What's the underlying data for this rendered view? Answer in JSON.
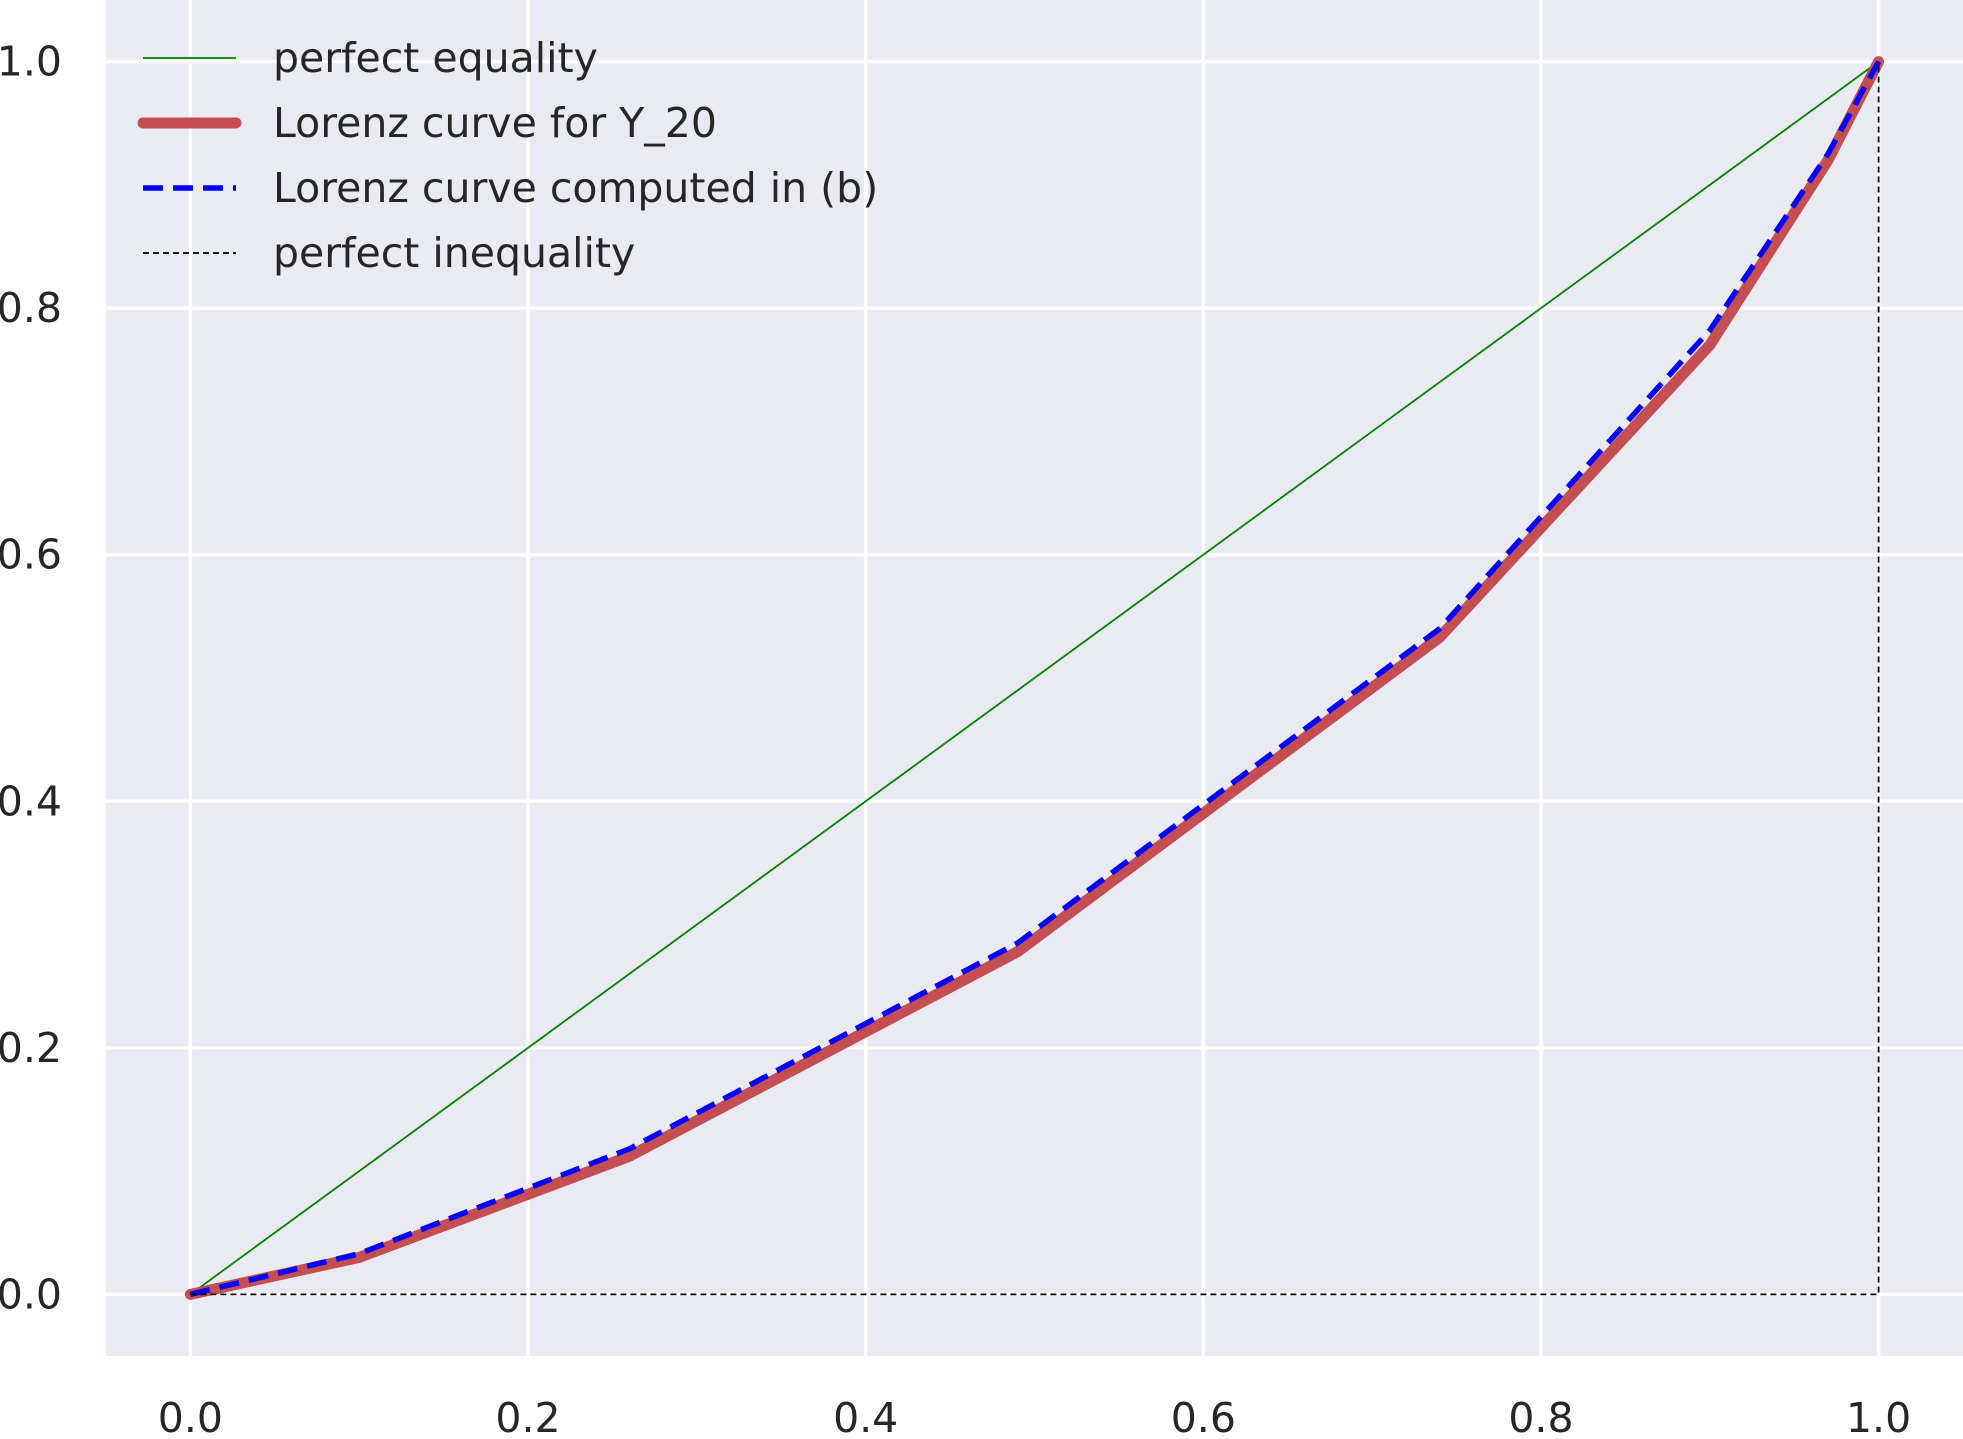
{
  "chart_data": {
    "type": "line",
    "xlim": [
      -0.05,
      1.05
    ],
    "ylim": [
      -0.05,
      1.05
    ],
    "x_ticks": [
      0.0,
      0.2,
      0.4,
      0.6,
      0.8,
      1.0
    ],
    "y_ticks": [
      0.0,
      0.2,
      0.4,
      0.6,
      0.8,
      1.0
    ],
    "x_tick_labels": [
      "0.0",
      "0.2",
      "0.4",
      "0.6",
      "0.8",
      "1.0"
    ],
    "y_tick_labels": [
      "0.0",
      "0.2",
      "0.4",
      "0.6",
      "0.8",
      "1.0"
    ],
    "grid": true,
    "background_color": "#eaeaf2",
    "legend_position": "upper-left",
    "series": [
      {
        "name": "perfect equality",
        "color": "#008000",
        "style": "solid-thin",
        "x": [
          0.0,
          1.0
        ],
        "y": [
          0.0,
          1.0
        ]
      },
      {
        "name": "Lorenz curve for Y_20",
        "color": "#c44e52",
        "style": "solid-thick",
        "x": [
          0.0,
          0.1,
          0.26,
          0.49,
          0.74,
          0.9,
          0.97,
          1.0
        ],
        "y": [
          0.0,
          0.03,
          0.112,
          0.278,
          0.533,
          0.77,
          0.92,
          1.0
        ]
      },
      {
        "name": "Lorenz curve computed in (b)",
        "color": "#0000ff",
        "style": "dashed",
        "x": [
          0.0,
          0.1,
          0.26,
          0.49,
          0.74,
          0.9,
          0.97,
          1.0
        ],
        "y": [
          0.0,
          0.033,
          0.118,
          0.285,
          0.54,
          0.782,
          0.925,
          1.0
        ]
      },
      {
        "name": "perfect inequality",
        "color": "#000000",
        "style": "dashed-thin",
        "x": [
          0.0,
          1.0,
          1.0
        ],
        "y": [
          0.0,
          0.0,
          1.0
        ]
      }
    ]
  }
}
